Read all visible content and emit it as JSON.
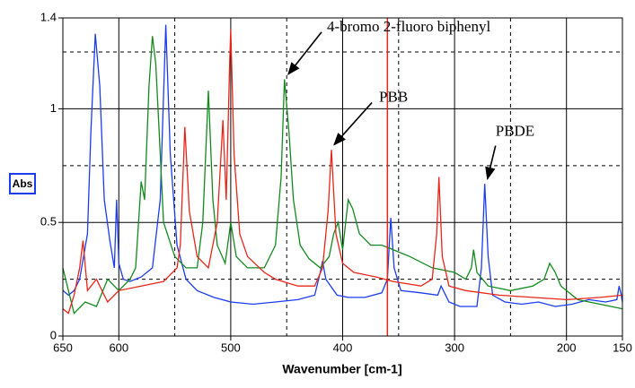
{
  "chart_data": {
    "type": "line",
    "xlabel": "Wavenumber [cm-1]",
    "ylabel": "Abs",
    "xlim": [
      650,
      150
    ],
    "ylim": [
      0,
      1.4
    ],
    "xticks": [
      650,
      600,
      500,
      400,
      300,
      200,
      150
    ],
    "yticks": [
      0,
      0.5,
      1,
      1.4
    ],
    "x_major_grid": [
      600,
      500,
      400,
      300,
      200
    ],
    "x_minor_grid": [
      550,
      450,
      350,
      250
    ],
    "y_major_grid": [
      0.5,
      1
    ],
    "y_minor_grid": [
      0.25,
      0.75,
      1.25
    ],
    "grid": true,
    "cursor": {
      "x": 360,
      "color": "#e8261a"
    },
    "series": [
      {
        "color": "#1c3cf0",
        "x": [
          650,
          645,
          640,
          635,
          628,
          625,
          621,
          617,
          613,
          608,
          604,
          602,
          600,
          596,
          590,
          580,
          570,
          563,
          558,
          554,
          548,
          540,
          530,
          515,
          500,
          480,
          460,
          440,
          425,
          420,
          418,
          415,
          405,
          395,
          380,
          365,
          360,
          357,
          354,
          348,
          330,
          315,
          312,
          305,
          295,
          280,
          276,
          273,
          270,
          266,
          255,
          240,
          225,
          210,
          195,
          180,
          165,
          155,
          153,
          151,
          150
        ],
        "values": [
          0.2,
          0.18,
          0.2,
          0.25,
          0.45,
          0.9,
          1.33,
          1.1,
          0.6,
          0.42,
          0.3,
          0.6,
          0.32,
          0.25,
          0.24,
          0.26,
          0.3,
          0.6,
          1.37,
          0.8,
          0.4,
          0.25,
          0.2,
          0.17,
          0.15,
          0.14,
          0.15,
          0.16,
          0.18,
          0.28,
          0.33,
          0.25,
          0.18,
          0.17,
          0.17,
          0.19,
          0.25,
          0.52,
          0.3,
          0.2,
          0.19,
          0.18,
          0.22,
          0.15,
          0.13,
          0.13,
          0.3,
          0.67,
          0.35,
          0.18,
          0.15,
          0.14,
          0.15,
          0.13,
          0.14,
          0.16,
          0.15,
          0.16,
          0.22,
          0.18,
          0.15
        ]
      },
      {
        "color": "#148a1e",
        "x": [
          650,
          645,
          640,
          630,
          620,
          610,
          600,
          590,
          585,
          580,
          577,
          573,
          570,
          567,
          564,
          560,
          550,
          540,
          530,
          525,
          520,
          516,
          512,
          505,
          500,
          495,
          485,
          470,
          460,
          455,
          452,
          448,
          444,
          438,
          430,
          420,
          412,
          408,
          404,
          400,
          395,
          391,
          385,
          375,
          365,
          355,
          340,
          320,
          300,
          290,
          285,
          283,
          280,
          270,
          250,
          230,
          220,
          215,
          210,
          205,
          190,
          170,
          150
        ],
        "values": [
          0.3,
          0.2,
          0.1,
          0.15,
          0.13,
          0.25,
          0.2,
          0.25,
          0.3,
          0.68,
          0.6,
          1.1,
          1.32,
          1.2,
          0.9,
          0.5,
          0.35,
          0.3,
          0.3,
          0.5,
          1.08,
          0.6,
          0.4,
          0.32,
          0.5,
          0.35,
          0.3,
          0.3,
          0.4,
          0.7,
          1.13,
          0.9,
          0.6,
          0.4,
          0.34,
          0.3,
          0.35,
          0.45,
          0.5,
          0.38,
          0.6,
          0.56,
          0.45,
          0.4,
          0.4,
          0.38,
          0.35,
          0.3,
          0.28,
          0.25,
          0.3,
          0.38,
          0.28,
          0.22,
          0.2,
          0.22,
          0.25,
          0.32,
          0.28,
          0.22,
          0.16,
          0.14,
          0.12
        ]
      },
      {
        "color": "#e8261a",
        "x": [
          650,
          645,
          640,
          635,
          632,
          628,
          620,
          610,
          600,
          580,
          560,
          548,
          545,
          541,
          537,
          530,
          520,
          512,
          507,
          504,
          501,
          500,
          497,
          492,
          485,
          470,
          460,
          440,
          425,
          418,
          413,
          410,
          406,
          400,
          390,
          370,
          355,
          330,
          320,
          316,
          314,
          311,
          305,
          290,
          260,
          230,
          200,
          170,
          150
        ],
        "values": [
          0.12,
          0.1,
          0.18,
          0.3,
          0.42,
          0.2,
          0.25,
          0.15,
          0.2,
          0.22,
          0.24,
          0.3,
          0.4,
          0.92,
          0.55,
          0.35,
          0.3,
          0.5,
          0.95,
          0.6,
          1.2,
          1.35,
          0.8,
          0.45,
          0.35,
          0.28,
          0.25,
          0.22,
          0.22,
          0.3,
          0.55,
          0.82,
          0.45,
          0.32,
          0.28,
          0.26,
          0.24,
          0.22,
          0.25,
          0.45,
          0.7,
          0.35,
          0.22,
          0.2,
          0.18,
          0.17,
          0.16,
          0.17,
          0.18
        ]
      }
    ],
    "annotations": [
      {
        "text": "4-bromo 2-fluoro biphenyl",
        "x": 451,
        "y": 1.14
      },
      {
        "text": "PBB",
        "x": 410,
        "y": 0.83
      },
      {
        "text": "PBDE",
        "x": 273,
        "y": 0.68
      }
    ]
  }
}
